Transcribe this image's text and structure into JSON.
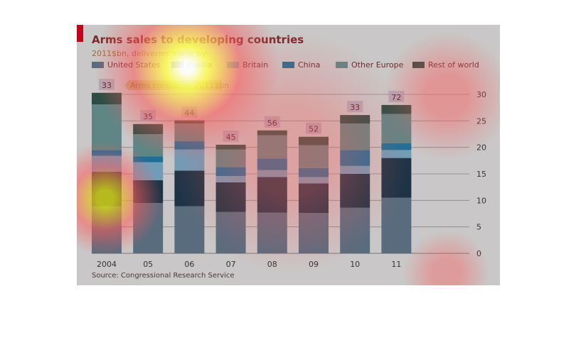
{
  "chart_data": {
    "type": "bar",
    "stacked": true,
    "title": "Arms sales to developing countries",
    "subtitle": "2011$bn, deliveries made by:",
    "categories": [
      "2004",
      "05",
      "06",
      "07",
      "08",
      "09",
      "10",
      "11"
    ],
    "series": [
      {
        "name": "United States",
        "color": "#586c7e",
        "values": [
          8.9,
          9.5,
          8.9,
          7.8,
          7.7,
          7.6,
          8.6,
          10.5
        ]
      },
      {
        "name": "Russia",
        "color": "#1c3445",
        "values": [
          6.5,
          4.3,
          6.7,
          5.6,
          6.7,
          5.6,
          6.4,
          7.5
        ]
      },
      {
        "name": "Britain",
        "color": "#6e9db8",
        "values": [
          3.0,
          3.4,
          4.0,
          1.2,
          1.3,
          1.2,
          1.5,
          1.5
        ]
      },
      {
        "name": "China",
        "color": "#1f6e96",
        "values": [
          1.1,
          1.1,
          1.6,
          1.7,
          2.2,
          1.7,
          3.0,
          1.3
        ]
      },
      {
        "name": "Other Europe",
        "color": "#5f8584",
        "values": [
          8.6,
          4.2,
          3.3,
          3.3,
          4.4,
          4.3,
          5.0,
          5.5
        ]
      },
      {
        "name": "Rest of world",
        "color": "#2c4d45",
        "values": [
          2.2,
          1.9,
          0.6,
          0.9,
          0.9,
          1.6,
          1.6,
          1.7
        ]
      }
    ],
    "annotation_label": "Arms contracts, 2011$bn",
    "annotations": [
      33,
      35,
      44,
      45,
      56,
      52,
      33,
      72
    ],
    "yticks": [
      0,
      5,
      10,
      15,
      20,
      25,
      30
    ],
    "ylim": [
      0,
      30
    ],
    "xlabel": "",
    "ylabel": "",
    "grid": true,
    "legend_position": "top",
    "source": "Source: Congressional Research Service"
  }
}
